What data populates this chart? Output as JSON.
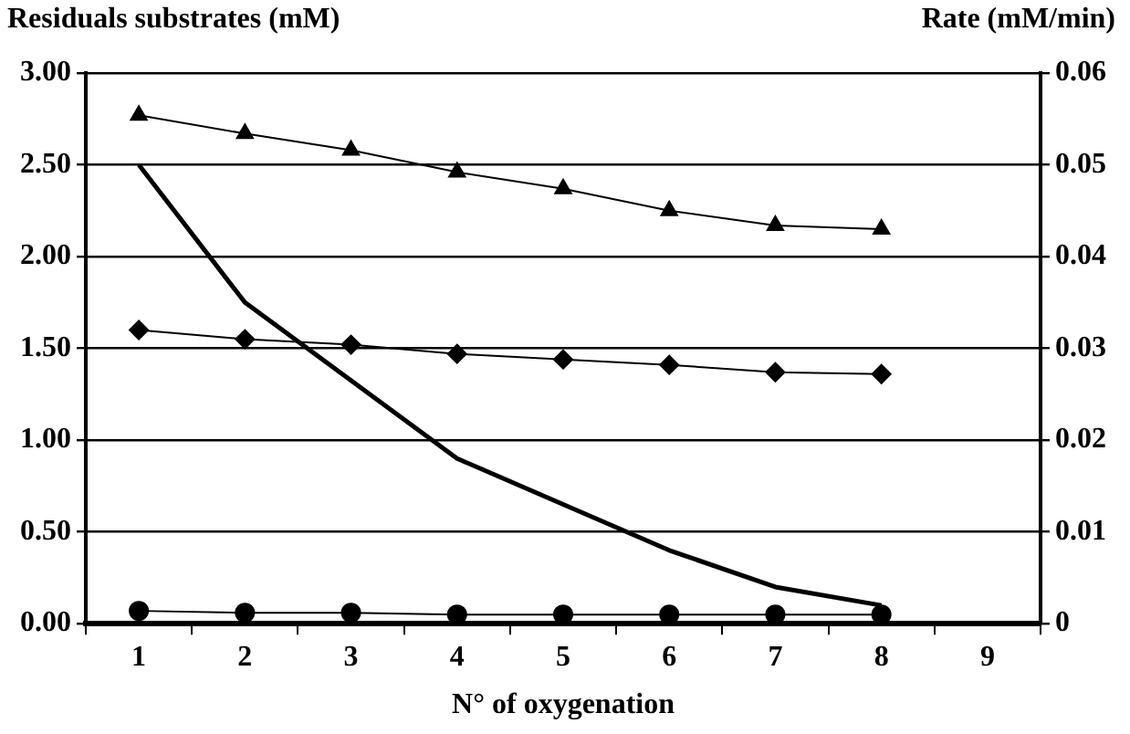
{
  "chart_data": {
    "type": "line",
    "ylabel": "Residuals substrates (mM)",
    "y2label": "Rate (mM/min)",
    "xlabel": "N° of oxygenation",
    "categories": [
      "1",
      "2",
      "3",
      "4",
      "5",
      "6",
      "7",
      "8",
      "9"
    ],
    "series": [
      {
        "color": "#000000",
        "marker": "triangle",
        "values": [
          2.77,
          2.67,
          2.58,
          2.46,
          2.37,
          2.25,
          2.17,
          2.15,
          null
        ]
      },
      {
        "color": "#000000",
        "marker": "diamond",
        "values": [
          1.6,
          1.55,
          1.52,
          1.47,
          1.44,
          1.41,
          1.37,
          1.36,
          null
        ]
      },
      {
        "color": "#000000",
        "marker": "circle",
        "values": [
          0.07,
          0.06,
          0.06,
          0.05,
          0.05,
          0.05,
          0.05,
          0.05,
          null
        ]
      },
      {
        "color": "#000000",
        "marker": "none",
        "axis": "y2",
        "values": [
          0.05,
          0.035,
          0.0265,
          0.018,
          0.013,
          0.008,
          0.004,
          0.002,
          null
        ]
      }
    ],
    "ylim": [
      0,
      3
    ],
    "yticks": [
      {
        "value": 0,
        "label": "0.00"
      },
      {
        "value": 0.5,
        "label": "0.50"
      },
      {
        "value": 1,
        "label": "1.00"
      },
      {
        "value": 1.5,
        "label": "1.50"
      },
      {
        "value": 2,
        "label": "2.00"
      },
      {
        "value": 2.5,
        "label": "2.50"
      },
      {
        "value": 3,
        "label": "3.00"
      }
    ],
    "y2lim": [
      0,
      0.06
    ],
    "y2ticks": [
      0,
      0.01,
      0.02,
      0.03,
      0.04,
      0.05,
      0.06
    ],
    "grid": "y",
    "legend": false,
    "line_style": "solid"
  }
}
